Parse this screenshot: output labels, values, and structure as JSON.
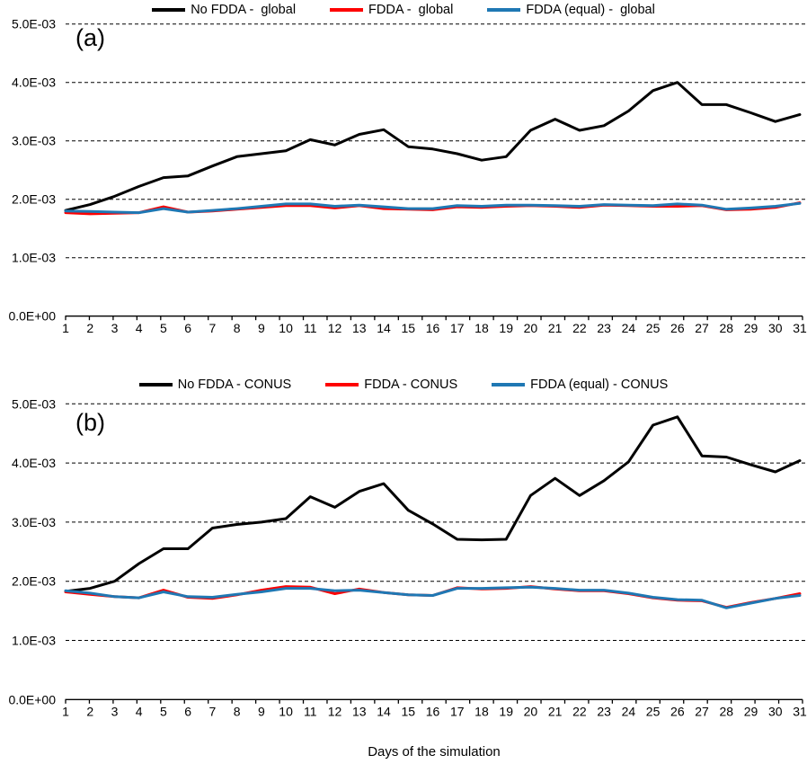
{
  "xaxis_title": "Days of the simulation",
  "panel_labels": {
    "a": "(a)",
    "b": "(b)"
  },
  "colors": {
    "no_fdda": "#000000",
    "fdda": "#fe0000",
    "fdda_equal": "#1f78b4"
  },
  "chart_data": [
    {
      "type": "line",
      "panel_label": "(a)",
      "legend_position": "top-center",
      "grid": "horizontal-dashed",
      "xlabel": "Days of the simulation",
      "ylabel": "",
      "ylim": [
        0.0,
        0.005
      ],
      "x": [
        1,
        2,
        3,
        4,
        5,
        6,
        7,
        8,
        9,
        10,
        11,
        12,
        13,
        14,
        15,
        16,
        17,
        18,
        19,
        20,
        21,
        22,
        23,
        24,
        25,
        26,
        27,
        28,
        29,
        30,
        31
      ],
      "y_tick_labels": [
        "0.0E+00",
        "1.0E-03",
        "2.0E-03",
        "3.0E-03",
        "4.0E-03",
        "5.0E-03"
      ],
      "series": [
        {
          "name": "No FDDA -  global",
          "color": "#000000",
          "values": [
            0.00181,
            0.00191,
            0.00205,
            0.00222,
            0.00237,
            0.0024,
            0.00257,
            0.00273,
            0.00278,
            0.00283,
            0.00302,
            0.00293,
            0.00311,
            0.00319,
            0.0029,
            0.00286,
            0.00278,
            0.00267,
            0.00273,
            0.00318,
            0.00337,
            0.00318,
            0.00326,
            0.00351,
            0.00386,
            0.004,
            0.00362,
            0.00362,
            0.00348,
            0.00333,
            0.00345
          ]
        },
        {
          "name": "FDDA -  global",
          "color": "#fe0000",
          "values": [
            0.00177,
            0.00175,
            0.00176,
            0.00177,
            0.00187,
            0.00178,
            0.0018,
            0.00183,
            0.00186,
            0.00189,
            0.00189,
            0.00185,
            0.00189,
            0.00184,
            0.00183,
            0.00182,
            0.00187,
            0.00186,
            0.00188,
            0.00189,
            0.00188,
            0.00186,
            0.0019,
            0.00189,
            0.00188,
            0.00188,
            0.00189,
            0.00182,
            0.00183,
            0.00186,
            0.00194
          ]
        },
        {
          "name": "FDDA (equal) -  global",
          "color": "#1f78b4",
          "values": [
            0.0018,
            0.00179,
            0.00178,
            0.00177,
            0.00184,
            0.00178,
            0.00181,
            0.00184,
            0.00188,
            0.00192,
            0.00192,
            0.00188,
            0.0019,
            0.00187,
            0.00184,
            0.00184,
            0.00189,
            0.00188,
            0.0019,
            0.0019,
            0.00189,
            0.00188,
            0.00191,
            0.0019,
            0.00189,
            0.00192,
            0.0019,
            0.00183,
            0.00185,
            0.00188,
            0.00193
          ]
        }
      ]
    },
    {
      "type": "line",
      "panel_label": "(b)",
      "legend_position": "top-center",
      "grid": "horizontal-dashed",
      "xlabel": "Days of the simulation",
      "ylabel": "",
      "ylim": [
        0.0,
        0.005
      ],
      "x": [
        1,
        2,
        3,
        4,
        5,
        6,
        7,
        8,
        9,
        10,
        11,
        12,
        13,
        14,
        15,
        16,
        17,
        18,
        19,
        20,
        21,
        22,
        23,
        24,
        25,
        26,
        27,
        28,
        29,
        30,
        31
      ],
      "y_tick_labels": [
        "0.0E+00",
        "1.0E-03",
        "2.0E-03",
        "3.0E-03",
        "4.0E-03",
        "5.0E-03"
      ],
      "series": [
        {
          "name": "No FDDA - CONUS",
          "color": "#000000",
          "values": [
            0.00183,
            0.00188,
            0.002,
            0.0023,
            0.00255,
            0.00255,
            0.0029,
            0.00296,
            0.003,
            0.00306,
            0.00343,
            0.00325,
            0.00352,
            0.00365,
            0.0032,
            0.00297,
            0.00271,
            0.0027,
            0.00271,
            0.00345,
            0.00374,
            0.00345,
            0.0037,
            0.00402,
            0.00464,
            0.00478,
            0.00412,
            0.0041,
            0.00397,
            0.00385,
            0.00404
          ]
        },
        {
          "name": "FDDA - CONUS",
          "color": "#fe0000",
          "values": [
            0.00182,
            0.00178,
            0.00174,
            0.00172,
            0.00185,
            0.00173,
            0.00171,
            0.00177,
            0.00185,
            0.00191,
            0.0019,
            0.00179,
            0.00187,
            0.00181,
            0.00177,
            0.00176,
            0.00189,
            0.00187,
            0.00188,
            0.00191,
            0.00187,
            0.00184,
            0.00184,
            0.00179,
            0.00172,
            0.00168,
            0.00167,
            0.00156,
            0.00164,
            0.00171,
            0.00179
          ]
        },
        {
          "name": "FDDA (equal) - CONUS",
          "color": "#1f78b4",
          "values": [
            0.00184,
            0.0018,
            0.00174,
            0.00172,
            0.00182,
            0.00174,
            0.00173,
            0.00178,
            0.00182,
            0.00188,
            0.00188,
            0.00184,
            0.00185,
            0.00181,
            0.00177,
            0.00176,
            0.00188,
            0.00188,
            0.00189,
            0.0019,
            0.00188,
            0.00185,
            0.00185,
            0.0018,
            0.00173,
            0.00169,
            0.00168,
            0.00155,
            0.00163,
            0.00171,
            0.00176
          ]
        }
      ]
    }
  ]
}
